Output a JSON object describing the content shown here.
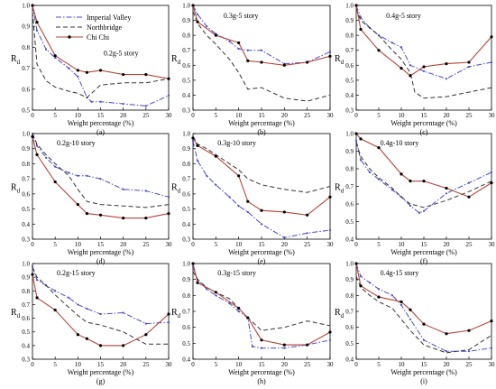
{
  "figure": {
    "x_label": "Weight percentage (%)",
    "y_label_main": "R",
    "y_label_sub": "d"
  },
  "legend": [
    {
      "name": "Imperial Valley",
      "color": "#4a4ac8",
      "dash": "6,2,1.5,2",
      "marker": "none"
    },
    {
      "name": "Northbridge",
      "color": "#333333",
      "dash": "5,3",
      "marker": "none"
    },
    {
      "name": "Chi Chi",
      "color": "#b5453a",
      "dash": "",
      "marker": "circle"
    }
  ],
  "colors": {
    "imperial_valley": "#4a4ac8",
    "northbridge": "#333333",
    "chi_chi": "#b5453a",
    "marker": "#000000"
  },
  "chart_data": [
    {
      "type": "line",
      "panel": "(a)",
      "title": "0.2g-5 story",
      "ylim": [
        0.5,
        1.0
      ],
      "yticks": [
        0.5,
        0.6,
        0.7,
        0.8,
        0.9,
        1.0
      ],
      "xlim": [
        0,
        30
      ],
      "xticks": [
        0,
        5,
        10,
        15,
        20,
        25,
        30
      ],
      "series": [
        {
          "name": "Imperial Valley",
          "x": [
            0,
            1,
            3,
            5,
            8,
            10,
            12,
            13,
            15,
            20,
            25,
            30
          ],
          "y": [
            1.0,
            0.88,
            0.79,
            0.75,
            0.7,
            0.66,
            0.56,
            0.54,
            0.54,
            0.53,
            0.52,
            0.57
          ]
        },
        {
          "name": "Northbridge",
          "x": [
            0,
            1,
            3,
            5,
            8,
            10,
            12,
            15,
            20,
            25,
            30
          ],
          "y": [
            0.97,
            0.72,
            0.64,
            0.61,
            0.59,
            0.58,
            0.56,
            0.62,
            0.63,
            0.63,
            0.65
          ]
        },
        {
          "name": "Chi Chi",
          "x": [
            0,
            1,
            5,
            10,
            12,
            15,
            20,
            25,
            30
          ],
          "y": [
            1.0,
            0.92,
            0.76,
            0.69,
            0.68,
            0.69,
            0.67,
            0.67,
            0.65
          ]
        }
      ]
    },
    {
      "type": "line",
      "panel": "(b)",
      "title": "0.3g-5 story",
      "ylim": [
        0.3,
        1.0
      ],
      "yticks": [
        0.3,
        0.4,
        0.5,
        0.6,
        0.7,
        0.8,
        0.9,
        1.0
      ],
      "xlim": [
        0,
        30
      ],
      "xticks": [
        0,
        5,
        10,
        15,
        20,
        25,
        30
      ],
      "series": [
        {
          "name": "Imperial Valley",
          "x": [
            0,
            1,
            3,
            5,
            8,
            10,
            12,
            15,
            20,
            25,
            30
          ],
          "y": [
            1.0,
            0.94,
            0.86,
            0.81,
            0.76,
            0.71,
            0.7,
            0.7,
            0.61,
            0.62,
            0.69
          ]
        },
        {
          "name": "Northbridge",
          "x": [
            0,
            1,
            3,
            5,
            8,
            10,
            12,
            15,
            20,
            25,
            30
          ],
          "y": [
            0.96,
            0.88,
            0.8,
            0.74,
            0.64,
            0.55,
            0.44,
            0.45,
            0.38,
            0.36,
            0.4
          ]
        },
        {
          "name": "Chi Chi",
          "x": [
            0,
            1,
            5,
            10,
            12,
            15,
            20,
            25,
            30
          ],
          "y": [
            1.0,
            0.89,
            0.8,
            0.75,
            0.63,
            0.62,
            0.6,
            0.62,
            0.66
          ]
        }
      ]
    },
    {
      "type": "line",
      "panel": "(c)",
      "title": "0.4g-5 story",
      "ylim": [
        0.3,
        1.0
      ],
      "yticks": [
        0.3,
        0.4,
        0.5,
        0.6,
        0.7,
        0.8,
        0.9,
        1.0
      ],
      "xlim": [
        0,
        30
      ],
      "xticks": [
        0,
        5,
        10,
        15,
        20,
        25,
        30
      ],
      "series": [
        {
          "name": "Imperial Valley",
          "x": [
            0,
            1,
            3,
            5,
            8,
            10,
            12,
            15,
            20,
            25,
            30
          ],
          "y": [
            1.0,
            0.92,
            0.85,
            0.8,
            0.75,
            0.72,
            0.6,
            0.56,
            0.51,
            0.59,
            0.62
          ]
        },
        {
          "name": "Northbridge",
          "x": [
            0,
            1,
            3,
            5,
            8,
            10,
            12,
            13,
            15,
            20,
            25,
            30
          ],
          "y": [
            0.98,
            0.9,
            0.85,
            0.8,
            0.7,
            0.64,
            0.55,
            0.42,
            0.38,
            0.39,
            0.42,
            0.45
          ]
        },
        {
          "name": "Chi Chi",
          "x": [
            0,
            1,
            5,
            10,
            12,
            15,
            20,
            25,
            30
          ],
          "y": [
            1.0,
            0.84,
            0.7,
            0.58,
            0.53,
            0.59,
            0.61,
            0.62,
            0.79
          ]
        }
      ]
    },
    {
      "type": "line",
      "panel": "(d)",
      "title": "0.2g-10 story",
      "ylim": [
        0.3,
        1.0
      ],
      "yticks": [
        0.3,
        0.4,
        0.5,
        0.6,
        0.7,
        0.8,
        0.9,
        1.0
      ],
      "xlim": [
        0,
        30
      ],
      "xticks": [
        0,
        5,
        10,
        15,
        20,
        25,
        30
      ],
      "series": [
        {
          "name": "Imperial Valley",
          "x": [
            0,
            1,
            3,
            5,
            8,
            10,
            12,
            15,
            20,
            25,
            30
          ],
          "y": [
            1.0,
            0.92,
            0.84,
            0.78,
            0.74,
            0.72,
            0.72,
            0.7,
            0.63,
            0.62,
            0.58
          ]
        },
        {
          "name": "Northbridge",
          "x": [
            0,
            1,
            3,
            5,
            8,
            10,
            12,
            15,
            20,
            25,
            30
          ],
          "y": [
            1.0,
            0.93,
            0.86,
            0.8,
            0.72,
            0.63,
            0.55,
            0.53,
            0.52,
            0.51,
            0.53
          ]
        },
        {
          "name": "Chi Chi",
          "x": [
            0,
            1,
            5,
            10,
            12,
            15,
            20,
            25,
            30
          ],
          "y": [
            0.98,
            0.86,
            0.68,
            0.53,
            0.47,
            0.46,
            0.44,
            0.44,
            0.47
          ]
        }
      ]
    },
    {
      "type": "line",
      "panel": "(e)",
      "title": "0.3g-10 story",
      "ylim": [
        0.3,
        1.0
      ],
      "yticks": [
        0.3,
        0.4,
        0.5,
        0.6,
        0.7,
        0.8,
        0.9,
        1.0
      ],
      "xlim": [
        0,
        30
      ],
      "xticks": [
        0,
        5,
        10,
        15,
        20,
        25,
        30
      ],
      "series": [
        {
          "name": "Imperial Valley",
          "x": [
            0,
            1,
            3,
            5,
            8,
            10,
            12,
            15,
            20,
            25,
            30
          ],
          "y": [
            0.95,
            0.82,
            0.72,
            0.66,
            0.58,
            0.52,
            0.48,
            0.4,
            0.31,
            0.34,
            0.36
          ]
        },
        {
          "name": "Northbridge",
          "x": [
            0,
            1,
            3,
            5,
            8,
            10,
            12,
            15,
            20,
            25,
            30
          ],
          "y": [
            0.98,
            0.93,
            0.9,
            0.86,
            0.8,
            0.76,
            0.7,
            0.66,
            0.63,
            0.61,
            0.65
          ]
        },
        {
          "name": "Chi Chi",
          "x": [
            0,
            1,
            5,
            10,
            12,
            15,
            20,
            25,
            30
          ],
          "y": [
            0.97,
            0.92,
            0.85,
            0.72,
            0.55,
            0.49,
            0.48,
            0.46,
            0.58
          ]
        }
      ]
    },
    {
      "type": "line",
      "panel": "(f)",
      "title": "0.4g-10 story",
      "ylim": [
        0.4,
        1.0
      ],
      "yticks": [
        0.4,
        0.5,
        0.6,
        0.7,
        0.8,
        0.9,
        1.0
      ],
      "xlim": [
        0,
        30
      ],
      "xticks": [
        0,
        5,
        10,
        15,
        20,
        25,
        30
      ],
      "series": [
        {
          "name": "Imperial Valley",
          "x": [
            0,
            1,
            3,
            5,
            8,
            10,
            12,
            14,
            15,
            20,
            25,
            30
          ],
          "y": [
            0.96,
            0.85,
            0.78,
            0.74,
            0.68,
            0.64,
            0.59,
            0.55,
            0.56,
            0.66,
            0.72,
            0.78
          ]
        },
        {
          "name": "Northbridge",
          "x": [
            0,
            1,
            3,
            5,
            8,
            10,
            12,
            15,
            20,
            25,
            30
          ],
          "y": [
            0.95,
            0.87,
            0.8,
            0.75,
            0.69,
            0.64,
            0.6,
            0.58,
            0.62,
            0.67,
            0.73
          ]
        },
        {
          "name": "Chi Chi",
          "x": [
            0,
            1,
            5,
            10,
            12,
            15,
            20,
            25,
            30
          ],
          "y": [
            1.0,
            0.97,
            0.92,
            0.77,
            0.73,
            0.73,
            0.69,
            0.64,
            0.72
          ]
        }
      ]
    },
    {
      "type": "line",
      "panel": "(g)",
      "title": "0.2g-15 story",
      "ylim": [
        0.3,
        1.0
      ],
      "yticks": [
        0.3,
        0.4,
        0.5,
        0.6,
        0.7,
        0.8,
        0.9,
        1.0
      ],
      "xlim": [
        0,
        30
      ],
      "xticks": [
        0,
        5,
        10,
        15,
        20,
        25,
        30
      ],
      "series": [
        {
          "name": "Imperial Valley",
          "x": [
            0,
            1,
            3,
            5,
            8,
            10,
            12,
            15,
            20,
            25,
            30
          ],
          "y": [
            0.98,
            0.88,
            0.84,
            0.8,
            0.75,
            0.7,
            0.67,
            0.63,
            0.64,
            0.56,
            0.57
          ]
        },
        {
          "name": "Northbridge",
          "x": [
            0,
            1,
            3,
            5,
            8,
            10,
            12,
            15,
            20,
            25,
            30
          ],
          "y": [
            0.97,
            0.9,
            0.84,
            0.77,
            0.68,
            0.62,
            0.57,
            0.55,
            0.5,
            0.41,
            0.41
          ]
        },
        {
          "name": "Chi Chi",
          "x": [
            0,
            1,
            5,
            10,
            12,
            15,
            20,
            25,
            30
          ],
          "y": [
            0.92,
            0.75,
            0.66,
            0.48,
            0.45,
            0.4,
            0.4,
            0.48,
            0.63
          ]
        }
      ]
    },
    {
      "type": "line",
      "panel": "(h)",
      "title": "0.3g-15 story",
      "ylim": [
        0.4,
        1.0
      ],
      "yticks": [
        0.4,
        0.5,
        0.6,
        0.7,
        0.8,
        0.9,
        1.0
      ],
      "xlim": [
        0,
        30
      ],
      "xticks": [
        0,
        5,
        10,
        15,
        20,
        25,
        30
      ],
      "series": [
        {
          "name": "Imperial Valley",
          "x": [
            0,
            1,
            3,
            5,
            8,
            10,
            12,
            13,
            15,
            20,
            25,
            30
          ],
          "y": [
            0.98,
            0.9,
            0.84,
            0.8,
            0.75,
            0.7,
            0.66,
            0.48,
            0.47,
            0.47,
            0.49,
            0.52
          ]
        },
        {
          "name": "Northbridge",
          "x": [
            0,
            1,
            3,
            5,
            8,
            10,
            12,
            15,
            20,
            25,
            30
          ],
          "y": [
            0.95,
            0.9,
            0.85,
            0.82,
            0.78,
            0.72,
            0.66,
            0.58,
            0.6,
            0.64,
            0.61
          ]
        },
        {
          "name": "Chi Chi",
          "x": [
            0,
            1,
            5,
            10,
            12,
            15,
            20,
            25,
            30
          ],
          "y": [
            1.0,
            0.88,
            0.82,
            0.72,
            0.66,
            0.52,
            0.49,
            0.49,
            0.57
          ]
        }
      ]
    },
    {
      "type": "line",
      "panel": "(i)",
      "title": "0.4g-15 story",
      "ylim": [
        0.4,
        1.0
      ],
      "yticks": [
        0.4,
        0.5,
        0.6,
        0.7,
        0.8,
        0.9,
        1.0
      ],
      "xlim": [
        0,
        30
      ],
      "xticks": [
        0,
        5,
        10,
        15,
        20,
        25,
        30
      ],
      "series": [
        {
          "name": "Imperial Valley",
          "x": [
            0,
            1,
            3,
            5,
            8,
            10,
            12,
            15,
            20,
            25,
            30
          ],
          "y": [
            1.0,
            0.92,
            0.88,
            0.84,
            0.8,
            0.74,
            0.65,
            0.52,
            0.45,
            0.45,
            0.47
          ]
        },
        {
          "name": "Northbridge",
          "x": [
            0,
            1,
            3,
            5,
            8,
            10,
            12,
            15,
            20,
            25,
            30
          ],
          "y": [
            0.92,
            0.85,
            0.8,
            0.76,
            0.72,
            0.65,
            0.58,
            0.49,
            0.44,
            0.46,
            0.55
          ]
        },
        {
          "name": "Chi Chi",
          "x": [
            0,
            1,
            5,
            10,
            12,
            15,
            20,
            25,
            30
          ],
          "y": [
            1.0,
            0.86,
            0.79,
            0.76,
            0.71,
            0.62,
            0.56,
            0.58,
            0.64
          ]
        }
      ]
    }
  ]
}
